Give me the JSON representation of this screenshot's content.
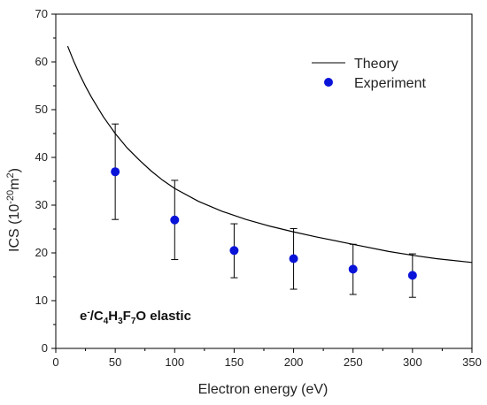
{
  "chart_data": {
    "type": "scatter",
    "xlabel": "Electron energy (eV)",
    "ylabel_parts": {
      "main": "ICS (10",
      "exp": "-20",
      "mid": "m",
      "exp2": "2",
      "end": ")"
    },
    "xlim": [
      0,
      350
    ],
    "ylim": [
      0,
      70
    ],
    "x_ticks": [
      0,
      50,
      100,
      150,
      200,
      250,
      300,
      350
    ],
    "y_ticks": [
      0,
      10,
      20,
      30,
      40,
      50,
      60,
      70
    ],
    "grid": false,
    "legend_position": "top-right",
    "annotation_parts": {
      "a": "e",
      "a_sup": "-",
      "b": "/C",
      "s1": "4",
      "c": "H",
      "s2": "3",
      "d": "F",
      "s3": "7",
      "e": "O elastic"
    },
    "series": [
      {
        "name": "Theory",
        "style": "line",
        "color": "#000000",
        "x": [
          10,
          15,
          20,
          25,
          30,
          40,
          50,
          60,
          70,
          80,
          90,
          100,
          120,
          140,
          160,
          180,
          200,
          220,
          250,
          280,
          300,
          320,
          350
        ],
        "y": [
          63.3,
          60.2,
          57.4,
          54.9,
          52.6,
          48.5,
          45.0,
          42.0,
          39.5,
          37.2,
          35.2,
          33.5,
          30.8,
          28.7,
          27.0,
          25.6,
          24.4,
          23.3,
          21.8,
          20.3,
          19.5,
          18.8,
          18.0
        ]
      },
      {
        "name": "Experiment",
        "style": "markers",
        "color": "#0a14d8",
        "x": [
          50,
          100,
          150,
          200,
          250,
          300
        ],
        "y": [
          37.0,
          26.9,
          20.5,
          18.8,
          16.6,
          15.3
        ],
        "err_low": [
          27.0,
          18.6,
          14.8,
          12.4,
          11.3,
          10.7
        ],
        "err_high": [
          47.0,
          35.2,
          26.1,
          25.1,
          21.8,
          19.8
        ]
      }
    ]
  }
}
